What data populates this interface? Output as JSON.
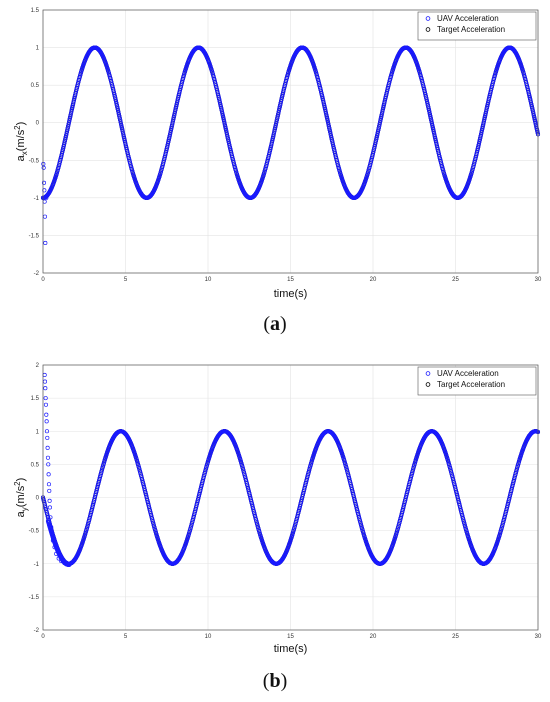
{
  "chart_data": [
    {
      "type": "line",
      "panel_label": {
        "open": "(",
        "letter": "a",
        "close": ")"
      },
      "xlabel": "time(s)",
      "ylabel": {
        "prefix": "a",
        "sub": "x",
        "mid": "(m/s",
        "sup": "2",
        "suffix": ")"
      },
      "xlim": [
        0,
        30
      ],
      "ylim": [
        -2,
        1.5
      ],
      "xticks": [
        "0",
        "5",
        "10",
        "15",
        "20",
        "25",
        "30"
      ],
      "yticks": [
        "-2",
        "-1.5",
        "-1",
        "-0.5",
        "0",
        "0.5",
        "1",
        "1.5"
      ],
      "grid": true,
      "legend_position": "top-right",
      "series": [
        {
          "name": "UAV Acceleration",
          "color": "#1a1aff",
          "marker": "circle-open",
          "function": "-cos(t)",
          "transient_points": [
            [
              0.02,
              -0.55
            ],
            [
              0.04,
              -0.6
            ],
            [
              0.06,
              -0.8
            ],
            [
              0.08,
              -0.9
            ],
            [
              0.1,
              -1.05
            ],
            [
              0.12,
              -1.25
            ],
            [
              0.14,
              -1.6
            ],
            [
              0.2,
              -1.0
            ]
          ]
        },
        {
          "name": "Target Acceleration",
          "color": "#000000",
          "marker": "circle-open",
          "function": "-cos(t)"
        }
      ]
    },
    {
      "type": "line",
      "panel_label": {
        "open": "(",
        "letter": "b",
        "close": ")"
      },
      "xlabel": "time(s)",
      "ylabel": {
        "prefix": "a",
        "sub": "y",
        "mid": "(m/s",
        "sup": "2",
        "suffix": ")"
      },
      "xlim": [
        0,
        30
      ],
      "ylim": [
        -2,
        2
      ],
      "xticks": [
        "0",
        "5",
        "10",
        "15",
        "20",
        "25",
        "30"
      ],
      "yticks": [
        "-2",
        "-1.5",
        "-1",
        "-0.5",
        "0",
        "0.5",
        "1",
        "1.5",
        "2"
      ],
      "grid": true,
      "legend_position": "top-right",
      "series": [
        {
          "name": "UAV Acceleration",
          "color": "#1a1aff",
          "marker": "circle-open",
          "function": "-sin(t)",
          "transient_points": [
            [
              0.1,
              1.85
            ],
            [
              0.12,
              1.75
            ],
            [
              0.14,
              1.65
            ],
            [
              0.16,
              1.5
            ],
            [
              0.18,
              1.4
            ],
            [
              0.2,
              1.25
            ],
            [
              0.22,
              1.15
            ],
            [
              0.24,
              1.0
            ],
            [
              0.26,
              0.9
            ],
            [
              0.28,
              0.75
            ],
            [
              0.3,
              0.6
            ],
            [
              0.32,
              0.5
            ],
            [
              0.34,
              0.35
            ],
            [
              0.36,
              0.2
            ],
            [
              0.38,
              0.1
            ],
            [
              0.4,
              -0.05
            ],
            [
              0.42,
              -0.15
            ],
            [
              0.45,
              -0.3
            ],
            [
              0.5,
              -0.45
            ],
            [
              0.55,
              -0.55
            ],
            [
              0.6,
              -0.65
            ],
            [
              0.7,
              -0.75
            ],
            [
              0.8,
              -0.85
            ],
            [
              0.95,
              -0.92
            ],
            [
              1.1,
              -0.96
            ],
            [
              1.3,
              -0.99
            ],
            [
              1.5,
              -1.0
            ]
          ]
        },
        {
          "name": "Target Acceleration",
          "color": "#000000",
          "marker": "circle-open",
          "function": "-sin(t)"
        }
      ]
    }
  ]
}
